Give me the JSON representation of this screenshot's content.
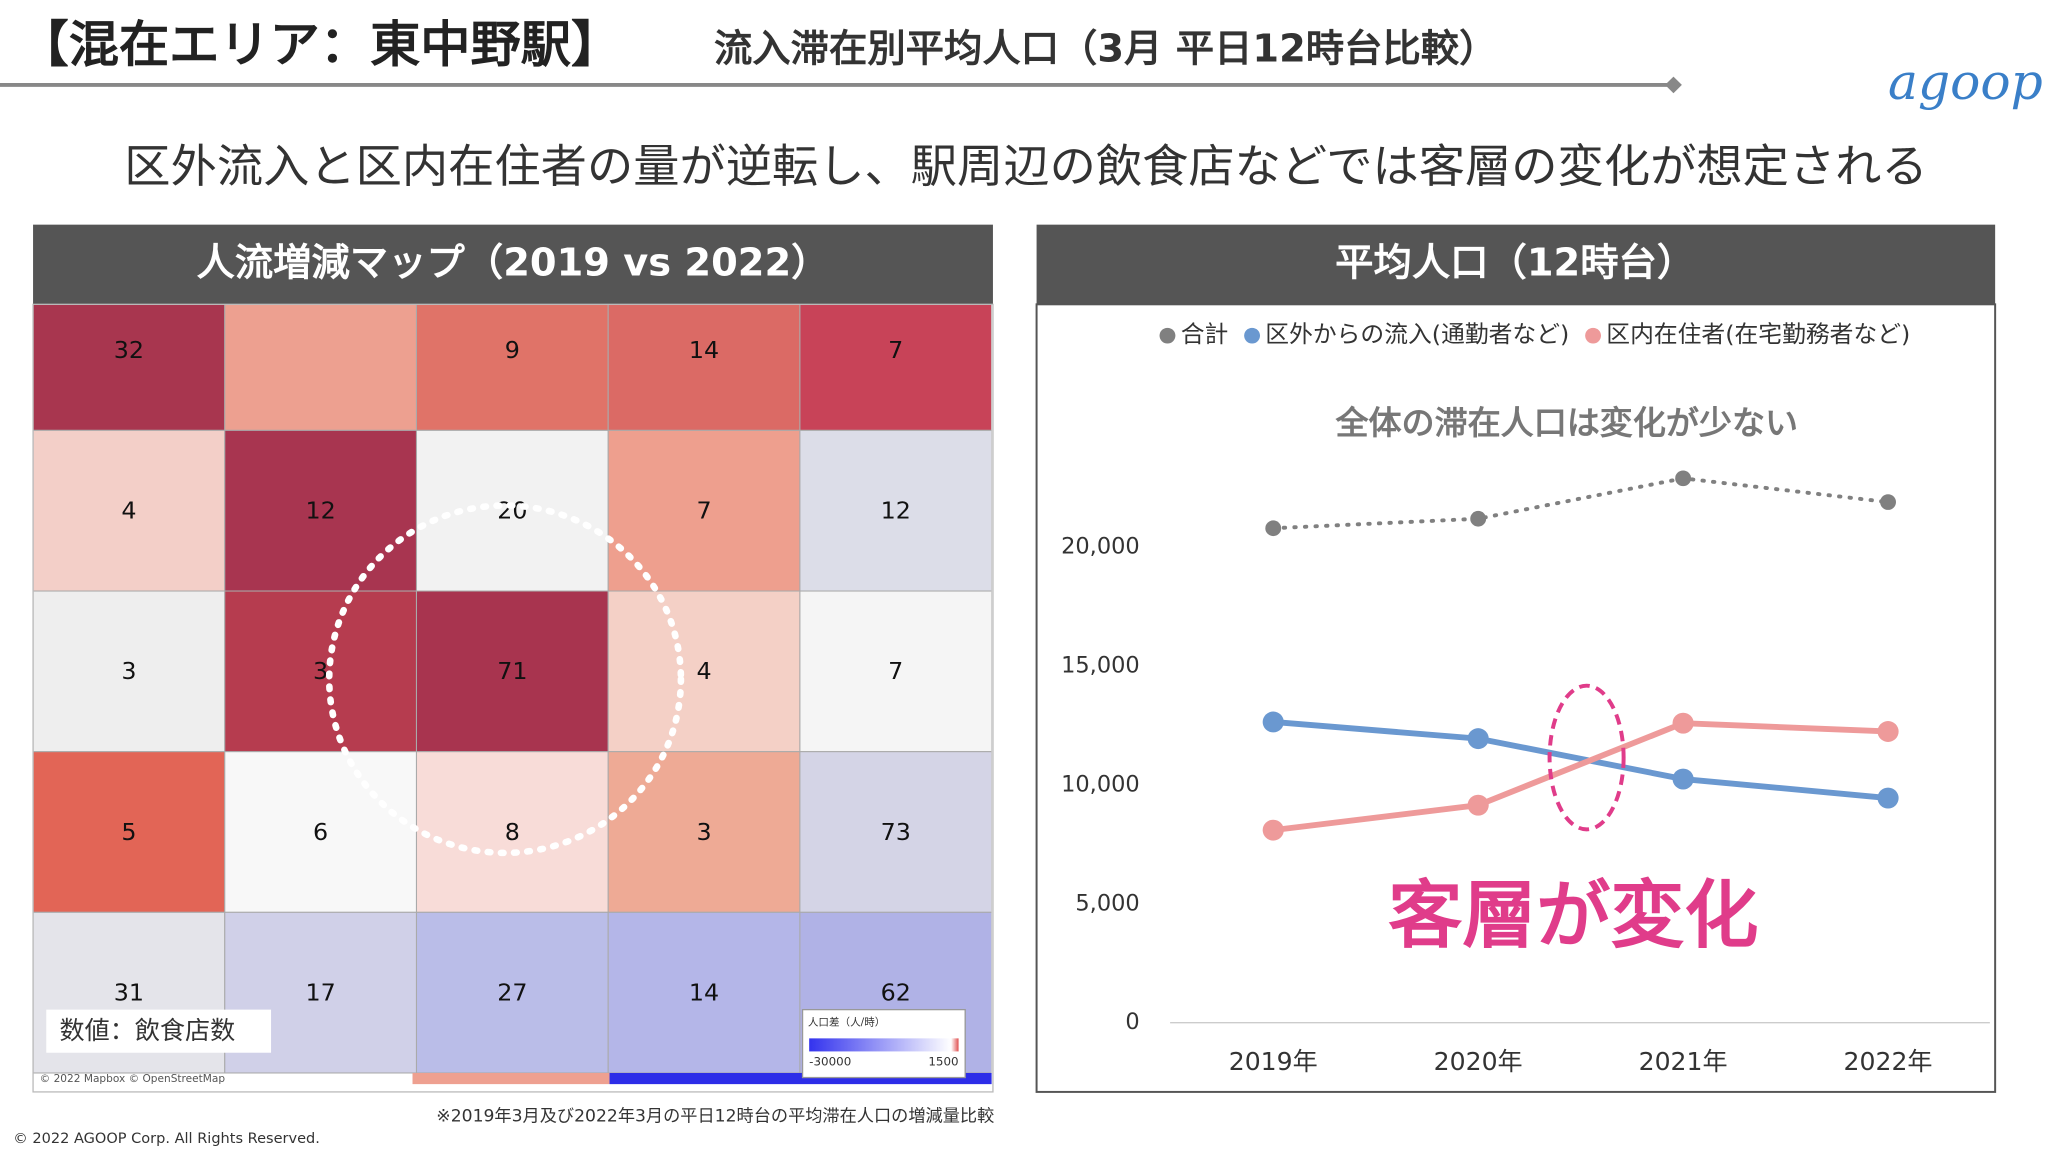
{
  "header": {
    "title": "【混在エリア：東中野駅】",
    "subtitle": "流入滞在別平均人口（3月 平日12時台比較）",
    "logo": "agoop"
  },
  "message": "区外流入と区内在住者の量が逆転し、駅周辺の飲食店などでは客層の変化が想定される",
  "map": {
    "title": "人流増減マップ（2019 vs 2022）",
    "values": [
      [
        32,
        null,
        9,
        14,
        7
      ],
      [
        4,
        12,
        20,
        7,
        12
      ],
      [
        3,
        3,
        71,
        4,
        7
      ],
      [
        5,
        6,
        8,
        3,
        73
      ],
      [
        31,
        17,
        27,
        14,
        62
      ]
    ],
    "cell_colors": [
      [
        "#a8364f",
        "#eda090",
        "#e07368",
        "#db6a65",
        "#c84358"
      ],
      [
        "#f3cfc8",
        "#a83550",
        "#f2f2f2",
        "#ee9f8e",
        "#dcdde8"
      ],
      [
        "#eeeeee",
        "#b63c4f",
        "#a8344f",
        "#f4d0c6",
        "#f5f5f5"
      ],
      [
        "#e26556",
        "#f8f8f8",
        "#f8dcd8",
        "#eeaa95",
        "#d4d4e6"
      ],
      [
        "#e4e4ea",
        "#d0d0e8",
        "#babde8",
        "#b4b6e8",
        "#b0b2e6"
      ]
    ],
    "label": "数値：飲食店数",
    "legend": {
      "title": "人口差（人/時）",
      "min": -30000,
      "max": 1500
    },
    "credit": "© 2022 Mapbox © OpenStreetMap"
  },
  "chart_data": {
    "type": "line",
    "title": "平均人口（12時台）",
    "categories": [
      "2019年",
      "2020年",
      "2021年",
      "2022年"
    ],
    "series": [
      {
        "name": "合計",
        "color": "#808080",
        "style": "dotted",
        "values": [
          20800,
          21200,
          22900,
          21900
        ]
      },
      {
        "name": "区外からの流入(通勤者など)",
        "color": "#6a98d0",
        "style": "solid",
        "values": [
          12650,
          11950,
          10250,
          9450
        ]
      },
      {
        "name": "区内在住者(在宅勤務者など)",
        "color": "#ee9a9a",
        "style": "solid",
        "values": [
          8100,
          9150,
          12600,
          12250
        ]
      }
    ],
    "ylim": [
      0,
      25000
    ],
    "yticks": [
      0,
      {
        "value": 5000,
        "label": "5,000"
      },
      {
        "value": 10000,
        "label": "10,000"
      },
      {
        "value": 15000,
        "label": "15,000"
      },
      {
        "value": 20000,
        "label": "20,000"
      }
    ],
    "annotations": [
      "全体の滞在人口は変化が少ない",
      "客層が変化"
    ]
  },
  "footnote": "※2019年3月及び2022年3月の平日12時台の平均滞在人口の増減量比較",
  "copyright": "© 2022 AGOOP Corp. All Rights Reserved."
}
